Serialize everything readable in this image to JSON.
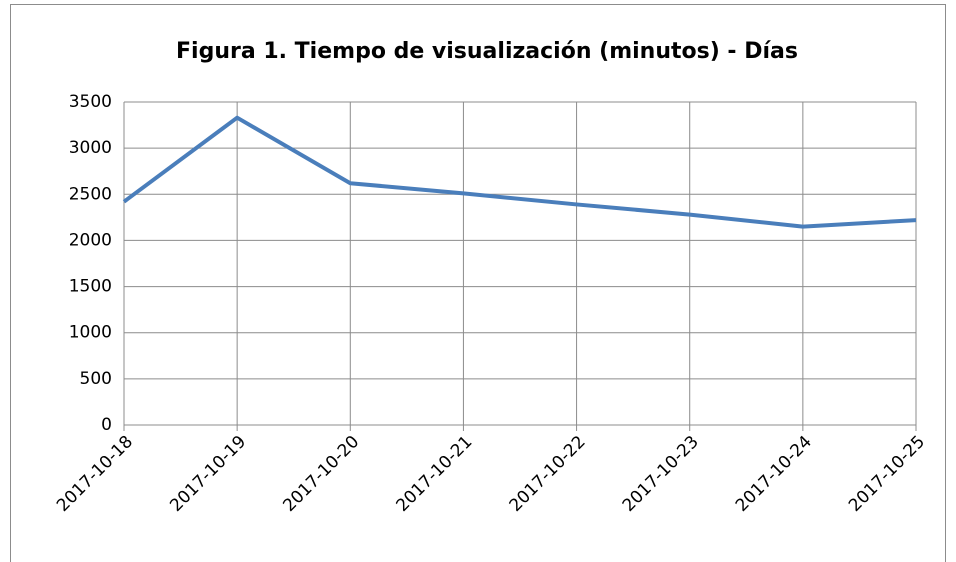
{
  "chart_data": {
    "type": "line",
    "title": "Figura 1. Tiempo de visualización (minutos) - Días",
    "x": [
      "2017-10-18",
      "2017-10-19",
      "2017-10-20",
      "2017-10-21",
      "2017-10-22",
      "2017-10-23",
      "2017-10-24",
      "2017-10-25"
    ],
    "series": [
      {
        "color": "#4a7ebb",
        "values": [
          2420,
          3330,
          2620,
          2510,
          2390,
          2280,
          2150,
          2220
        ]
      }
    ],
    "ylim": [
      0,
      3500
    ],
    "yticks": [
      0,
      500,
      1000,
      1500,
      2000,
      2500,
      3000,
      3500
    ],
    "grid": true
  }
}
